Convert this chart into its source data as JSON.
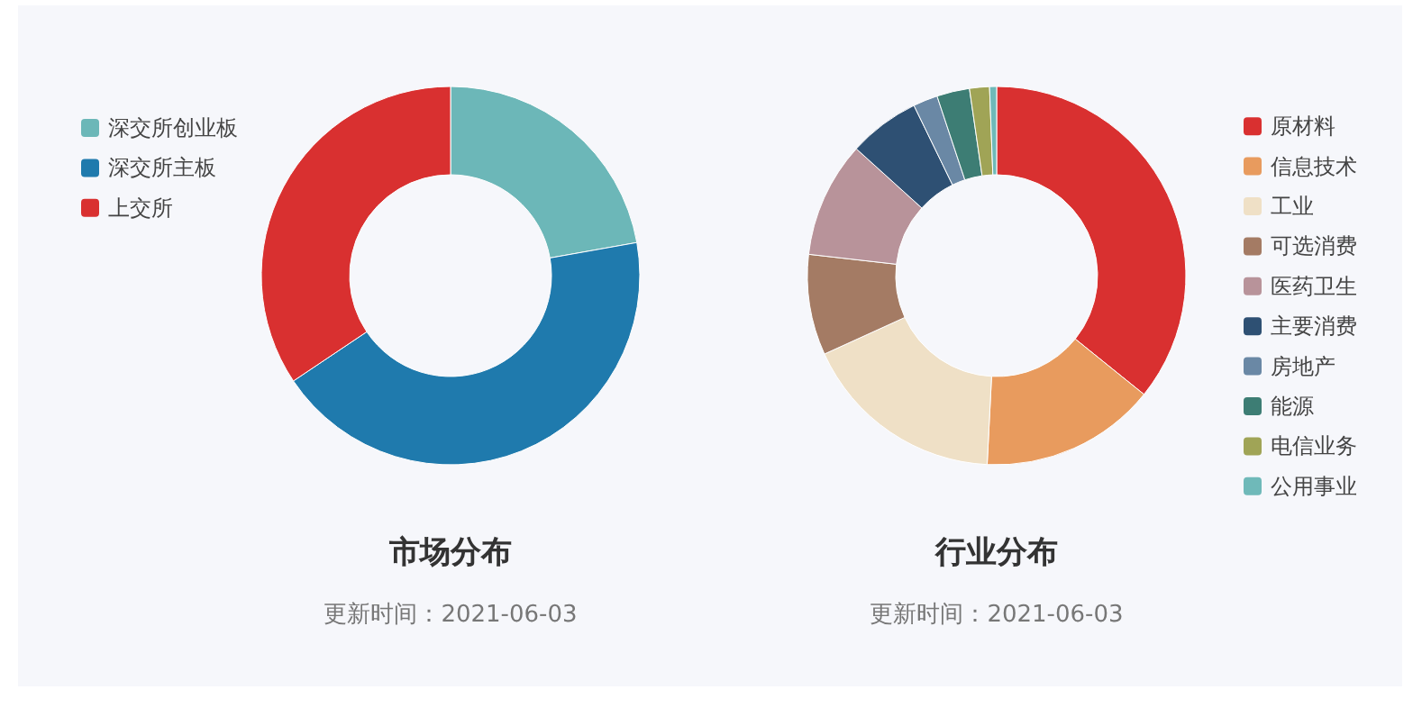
{
  "chart_data": [
    {
      "type": "donut",
      "title": "市场分布",
      "subtitle": "更新时间：2021-06-03",
      "legend": "top left",
      "categories": [
        "深交所创业板",
        "深交所主板",
        "上交所"
      ],
      "values": [
        22.2,
        43.4,
        34.4
      ],
      "colors": [
        "#6cb7b8",
        "#1f7aad",
        "#d93030"
      ]
    },
    {
      "type": "donut",
      "title": "行业分布",
      "subtitle": "更新时间：2021-06-03",
      "legend": "right",
      "categories": [
        "原材料",
        "信息技术",
        "工业",
        "可选消费",
        "医药卫生",
        "主要消费",
        "房地产",
        "能源",
        "电信业务",
        "公用事业"
      ],
      "values": [
        35.8,
        15.0,
        17.4,
        8.6,
        9.9,
        6.1,
        2.1,
        2.8,
        1.7,
        0.6
      ],
      "colors": [
        "#d93030",
        "#e89b5e",
        "#efe0c6",
        "#a47b64",
        "#b8939a",
        "#2e5073",
        "#6a88a5",
        "#3d7d74",
        "#a0a456",
        "#6fb9b9"
      ]
    }
  ]
}
